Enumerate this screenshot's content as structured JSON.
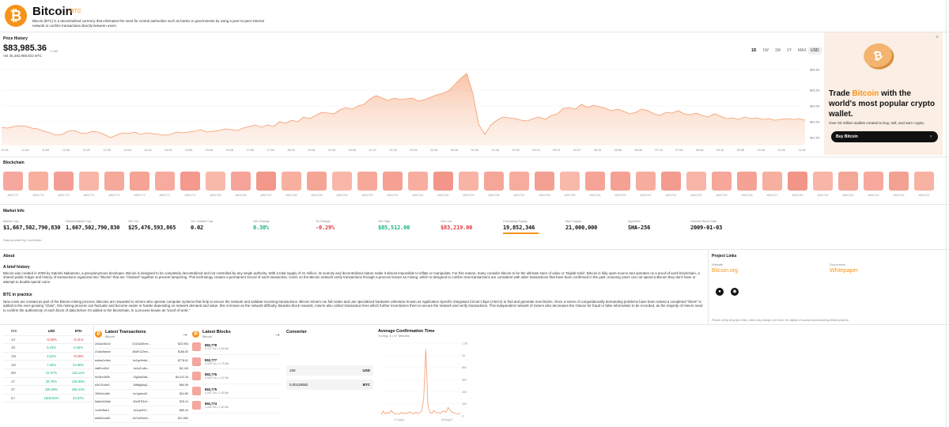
{
  "header": {
    "logo_glyph": "₿",
    "name": "Bitcoin",
    "symbol": "BTC",
    "description": "Bitcoin (BTC) is a decentralized currency that eliminates the need for central authorities such as banks or governments by using a peer-to-peer internet network to confirm transactions directly between users."
  },
  "price_history": {
    "title": "Price History",
    "price": "$83,985.36",
    "change": "+ 0.82",
    "volume": "Vol 25,482,868,822 BTC",
    "ranges": [
      "1D",
      "1W",
      "1M",
      "1Y",
      "MAX"
    ],
    "currency": "USD",
    "chart_data": {
      "type": "area",
      "title": "Price History",
      "y_tick_labels": [
        "$86.8K",
        "$85.5K",
        "$84.5K",
        "$83.5K",
        "$82.5K"
      ],
      "y_ticks": [
        86800,
        85500,
        84500,
        83500,
        82500
      ],
      "ylim": [
        82000,
        87000
      ],
      "x_tick_labels": [
        "11:36",
        "11:46",
        "11:59",
        "12:08",
        "12:20",
        "12:39",
        "13:04",
        "13:16",
        "14:26",
        "14:56",
        "15:49",
        "16:28",
        "17:06",
        "17:46",
        "18:26",
        "19:06",
        "19:46",
        "20:06",
        "21:47",
        "22:26",
        "23:06",
        "23:46",
        "00:26",
        "01:06",
        "01:46",
        "02:32",
        "03:15",
        "03:21",
        "04:37",
        "05:16",
        "05:56",
        "06:36",
        "07:16",
        "07:56",
        "08:36",
        "09:16",
        "09:56",
        "10:36",
        "11:06",
        "11:46"
      ],
      "values": [
        83150,
        83100,
        83200,
        83250,
        83220,
        83100,
        83050,
        82900,
        82800,
        82650,
        82700,
        82900,
        82950,
        82800,
        82750,
        82900,
        82850,
        82700,
        82500,
        82650,
        82800,
        82750,
        82850,
        82700,
        82800,
        82750,
        82700,
        82650,
        82700,
        82850,
        82800,
        82850,
        82900,
        83000,
        82850,
        82900,
        82950,
        83050,
        83000,
        82950,
        83100,
        83200,
        83300,
        83150,
        83300,
        83200,
        83500,
        83400,
        83600,
        83500,
        83800,
        83700,
        83900,
        84100,
        84050,
        84000,
        84250,
        84400,
        84300,
        84500,
        84600,
        84950,
        85150,
        85000,
        84850,
        85000,
        84900,
        84950,
        85000,
        84800,
        84900,
        85050,
        85200,
        85300,
        85450,
        85850,
        86250,
        86550,
        85300,
        83300,
        82700,
        83300,
        83600,
        83800,
        83750,
        83700,
        83600,
        83550,
        83700,
        83800,
        83650,
        83900,
        84000,
        84350,
        84400,
        84300,
        84600,
        84400,
        84550,
        84450,
        84350,
        84200,
        84300,
        84150,
        84000,
        84100,
        84300,
        84200,
        84000,
        83900,
        84100,
        84050,
        84200,
        84000,
        83950,
        84050,
        83900,
        83800,
        84000,
        83850,
        83700,
        83750,
        83650,
        83800,
        83700,
        83750,
        83650,
        83700,
        83600,
        83650,
        83700,
        83650,
        83700,
        83600
      ]
    }
  },
  "ad": {
    "close_glyph": "×",
    "coin_glyph": "₿",
    "headline_1": "Trade ",
    "headline_accent": "Bitcoin",
    "headline_2": " with the world's most popular crypto wallet.",
    "sub": "Over 83 million wallets created to buy, sell, and earn crypto.",
    "button": "Buy Bitcoin",
    "arrow": "›",
    "accent": "#f7931a"
  },
  "blockchain": {
    "title": "Blockchain",
    "blocks": [
      "#891777",
      "#891776",
      "#891775",
      "#891774",
      "#891773",
      "#891772",
      "#891771",
      "#891770",
      "#891769",
      "#891768",
      "#891767",
      "#891766",
      "#891765",
      "#891764",
      "#891763",
      "#891762",
      "#891761",
      "#891760",
      "#891759",
      "#891758",
      "#891757",
      "#891756",
      "#891755",
      "#891754",
      "#891753",
      "#891752",
      "#891751",
      "#891750",
      "#891749",
      "#891748",
      "#891747",
      "#891746",
      "#891745",
      "#891744",
      "#891743",
      "#891742",
      "#891741"
    ],
    "colors": [
      "#f6a89e",
      "#f7b09d",
      "#f39e94",
      "#f8b6a8",
      "#f5a99b",
      "#f4a394",
      "#f7ab9f",
      "#f3998e",
      "#f8b9ab",
      "#f6a49a",
      "#f29789",
      "#f7b0a0",
      "#f5a596",
      "#f8b7a9",
      "#f6a99a",
      "#f4a092",
      "#f7ae9f",
      "#f2968a",
      "#f8b3a5",
      "#f5a698",
      "#f7ab9d",
      "#f3a092",
      "#f8b8aa",
      "#f6a497",
      "#f4a193",
      "#f7ad9e",
      "#f39b8e",
      "#f8b4a7",
      "#f6a79a",
      "#f4a294",
      "#f7af9f",
      "#f29589",
      "#f8b5a8",
      "#f5a797",
      "#f6a99c",
      "#f3a193",
      "#f8b2a4"
    ]
  },
  "market_info": {
    "title": "Market Info",
    "stats": [
      {
        "label": "Market Cap",
        "value": "$1,667,502,790,830",
        "tone": "normal"
      },
      {
        "label": "Diluted Market Cap",
        "value": "1,667,502,790,830",
        "tone": "normal"
      },
      {
        "label": "24h Vol",
        "value": "$25,476,593,865",
        "tone": "normal"
      },
      {
        "label": "Vol / Market Cap",
        "value": "0.02",
        "tone": "normal"
      },
      {
        "label": "24h Change",
        "value": "0.38%",
        "tone": "pos"
      },
      {
        "label": "7d Change",
        "value": "-0.29%",
        "tone": "neg"
      },
      {
        "label": "24h High",
        "value": "$85,512.00",
        "tone": "pos"
      },
      {
        "label": "24h Low",
        "value": "$83,219.00",
        "tone": "neg"
      },
      {
        "label": "Circulating Supply",
        "value": "19,852,346",
        "tone": "normal"
      },
      {
        "label": "Max Supply",
        "value": "21,000,000",
        "tone": "normal"
      },
      {
        "label": "Algorithm",
        "value": "SHA-256",
        "tone": "normal"
      },
      {
        "label": "Genesis Block Date",
        "value": "2009-01-03",
        "tone": "normal"
      }
    ],
    "circulating_progress": 0.945,
    "powered_by": "Data provided by CoinGecko"
  },
  "about": {
    "title": "About",
    "brief_title": "A brief history",
    "brief_text": "Bitcoin was created in 2009 by Satoshi Nakamoto, a pseudonymous developer. Bitcoin is designed to be completely decentralized and not controlled by any single authority. With a total supply of 21 million, its scarcity and decentralized nature make it almost impossible to inflate or manipulate. For this reason, many consider bitcoin to be the ultimate store of value or 'Digital Gold'. Bitcoin is fully open-source and operates on a proof-of-work blockchain, a shared public ledger and history of transactions organized into \"blocks\" that are \"chained\" together to prevent tampering. This technology creates a permanent record of each transaction. Users on the Bitcoin network verify transactions through a process known as mining, which is designed to confirm new transactions are consistent with older transactions that have been confirmed in the past, ensuring users can not spend a Bitcoin they don't have or attempt to double-spend coins.",
    "practice_title": "BTC in practice",
    "practice_text": "New coins are created as part of the Bitcoin mining process. Bitcoins are rewarded to miners who operate computer systems that help to secure the network and validate incoming transactions. Bitcoin miners run full nodes and use specialized hardware otherwise known as Application Specific Integrated Circuit Chips (ASICs) to find and generate new blocks. Once a series of computationally demanding problems have been solved a completed \"block\" is added to the ever-growing \"chain\", this mining process can fluctuate and become easier or harder depending on network demand and value, this is known as the network difficulty. Besides block rewards, miners also collect transaction fees which further incentivizes them to secure the network and verify transactions. This independent network of miners also decreases the chance for fraud or false information to be recorded, as the majority of miners need to confirm the authenticity of each block of data before it's added to the blockchain, in a process known as \"proof of work.\""
  },
  "project_links": {
    "title": "Project Links",
    "website_label": "Website",
    "website": "Bitcoin.org",
    "docs_label": "Documents",
    "docs": "Whitepaper",
    "github_glyph": "●",
    "reddit_glyph": "◉",
    "note": "Please verify all project links, sites may change over time, be vigilant of scams impersonating official projects."
  },
  "roi": {
    "headers": [
      "ROI",
      "USD",
      "ETH"
    ],
    "rows": [
      {
        "period": "1H",
        "usd": "-0.36%",
        "eth": "-0.31%",
        "usd_tone": "neg",
        "eth_tone": "neg"
      },
      {
        "period": "1D",
        "usd": "0.43%",
        "eth": "0.45%",
        "usd_tone": "pos",
        "eth_tone": "pos"
      },
      {
        "period": "1W",
        "usd": "3.52%",
        "eth": "-0.09%",
        "usd_tone": "pos",
        "eth_tone": "neg"
      },
      {
        "period": "1M",
        "usd": "7.46%",
        "eth": "23.88%",
        "usd_tone": "pos",
        "eth_tone": "pos"
      },
      {
        "period": "6M",
        "usd": "22.07%",
        "eth": "118.11%",
        "usd_tone": "pos",
        "eth_tone": "pos"
      },
      {
        "period": "1Y",
        "usd": "26.75%",
        "eth": "136.88%",
        "usd_tone": "pos",
        "eth_tone": "pos"
      },
      {
        "period": "3Y",
        "usd": "185.69%",
        "eth": "296.43%",
        "usd_tone": "pos",
        "eth_tone": "pos"
      },
      {
        "period": "5Y",
        "usd": "1809.69%",
        "eth": "33.87%",
        "usd_tone": "pos",
        "eth_tone": "pos"
      }
    ]
  },
  "latest_transactions": {
    "title": "Latest Transactions",
    "sub": "Bitcoin",
    "arrow": "→",
    "icon_glyph": "₿",
    "rows": [
      {
        "hash": "2d1ac4b1e2",
        "to": "1GZvA3Kme…",
        "amount": "$23,904"
      },
      {
        "hash": "214dc9aecb",
        "to": "3BdF1Z2ms…",
        "amount": "$168.00"
      },
      {
        "hash": "ea4ac1e4ed",
        "to": "bc1qv9m6x…",
        "amount": "$778.81"
      },
      {
        "hash": "4a8f1c40cf",
        "to": "bc1q7ru8n…",
        "amount": "$4,128"
      },
      {
        "hash": "9c3f1e4b5b",
        "to": "3Jg3kd2d8…",
        "amount": "$4,412.18"
      },
      {
        "hash": "a3c7f1b4e2",
        "to": "1MtBg5dq3…",
        "amount": "$90.59"
      },
      {
        "hash": "1f9c0c1a56",
        "to": "bc1qahzd2…",
        "amount": "$24.89"
      },
      {
        "hash": "5a0a1b2b8e",
        "to": "3NzR7f3c9…",
        "amount": "$78.14"
      },
      {
        "hash": "1c4f1f5a1d",
        "to": "bc1qz5t7e…",
        "amount": "$85.10"
      },
      {
        "hash": "e6b5c1a4bf",
        "to": "1A7mXhe2c…",
        "amount": "$21,562"
      }
    ]
  },
  "latest_blocks": {
    "title": "Latest Blocks",
    "sub": "Bitcoin",
    "arrow": "→",
    "icon_glyph": "₿",
    "rows": [
      {
        "num": "892,778",
        "sub": "3,711 Txs • 1.56 Mb"
      },
      {
        "num": "892,777",
        "sub": "4,325 Txs • 1.78 Mb"
      },
      {
        "num": "892,776",
        "sub": "3,918 Txs • 1.62 Mb"
      },
      {
        "num": "892,775",
        "sub": "4,251 Txs • 1.80 Mb"
      },
      {
        "num": "892,774",
        "sub": "4,253 Txs • 1.80 Mb"
      }
    ]
  },
  "converter": {
    "title": "Converter",
    "amount": "100",
    "currency": "USD",
    "result": "0.00119082",
    "result_currency": "BTC"
  },
  "avg_confirmation": {
    "title": "Average Confirmation Time",
    "sub": "7d Avg: 6 • 47 Minutes",
    "chart_data": {
      "type": "line",
      "y_tick_labels": [
        "1.2K",
        "1K",
        "800",
        "600",
        "400",
        "200",
        "0"
      ],
      "ylim": [
        0,
        1200
      ],
      "x_tick_labels": [
        "17 Aug 1",
        "20 Aug 2"
      ],
      "values": [
        20,
        80,
        30,
        60,
        40,
        90,
        50,
        30,
        40,
        30,
        60,
        35,
        50,
        40,
        70,
        45,
        30,
        60,
        40,
        50,
        80,
        300,
        1100,
        200,
        60,
        40,
        90,
        50,
        60,
        40,
        70,
        80,
        60,
        140,
        90,
        60,
        50,
        40,
        30,
        45
      ]
    }
  }
}
